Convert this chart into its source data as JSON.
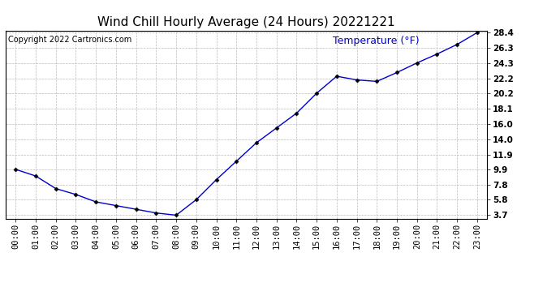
{
  "title": "Wind Chill Hourly Average (24 Hours) 20221221",
  "copyright_text": "Copyright 2022 Cartronics.com",
  "legend_label": "Temperature (°F)",
  "x_labels": [
    "00:00",
    "01:00",
    "02:00",
    "03:00",
    "04:00",
    "05:00",
    "06:00",
    "07:00",
    "08:00",
    "09:00",
    "10:00",
    "11:00",
    "12:00",
    "13:00",
    "14:00",
    "15:00",
    "16:00",
    "17:00",
    "18:00",
    "19:00",
    "20:00",
    "21:00",
    "22:00",
    "23:00"
  ],
  "y_values": [
    9.9,
    9.0,
    7.3,
    6.5,
    5.5,
    5.0,
    4.5,
    4.0,
    3.7,
    5.8,
    8.5,
    11.0,
    13.5,
    15.5,
    17.5,
    20.2,
    22.5,
    22.0,
    21.8,
    23.0,
    24.3,
    25.5,
    26.8,
    28.4
  ],
  "y_ticks": [
    3.7,
    5.8,
    7.8,
    9.9,
    11.9,
    14.0,
    16.0,
    18.1,
    20.2,
    22.2,
    24.3,
    26.3,
    28.4
  ],
  "y_min": 3.7,
  "y_max": 28.4,
  "line_color": "#0000cc",
  "marker_color": "#000000",
  "title_color": "#000000",
  "legend_color": "#0000cc",
  "copyright_color": "#000000",
  "grid_color": "#bbbbbb",
  "background_color": "#ffffff",
  "title_fontsize": 11,
  "axis_fontsize": 7.5,
  "copyright_fontsize": 7,
  "legend_fontsize": 9
}
